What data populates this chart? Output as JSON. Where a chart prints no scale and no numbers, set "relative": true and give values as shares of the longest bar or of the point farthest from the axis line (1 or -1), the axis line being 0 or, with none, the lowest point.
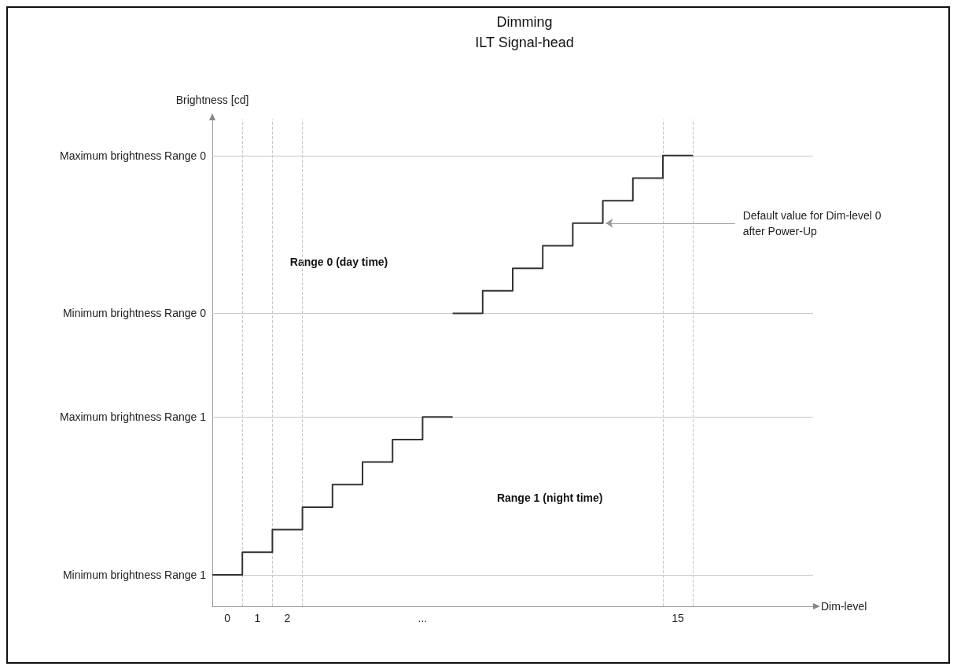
{
  "chart_data": {
    "type": "step",
    "title": "Dimming",
    "subtitle": "ILT Signal-head",
    "xlabel": "Dim-level",
    "ylabel": "Brightness [cd]",
    "relative": true,
    "xlim": [
      0,
      20
    ],
    "xticks": [
      {
        "value": 0.5,
        "label": "0"
      },
      {
        "value": 1.5,
        "label": "1"
      },
      {
        "value": 2.5,
        "label": "2"
      },
      {
        "value": 7,
        "label": "..."
      },
      {
        "value": 15.5,
        "label": "15"
      }
    ],
    "series": [
      {
        "color": "#333333",
        "x": [
          0,
          1,
          2,
          3,
          4,
          5,
          6,
          7,
          8
        ],
        "values": [
          0.07,
          0.12,
          0.17,
          0.22,
          0.27,
          0.32,
          0.37,
          0.42,
          0.42
        ]
      },
      {
        "color": "#333333",
        "x": [
          8,
          9,
          10,
          11,
          12,
          13,
          14,
          15,
          16
        ],
        "values": [
          0.65,
          0.7,
          0.75,
          0.8,
          0.85,
          0.9,
          0.95,
          1,
          1
        ]
      }
    ],
    "ref_lines": [
      {
        "axis": "y",
        "value": 0.07,
        "label": "Minimum brightness Range 1",
        "color": "#c8c8c8"
      },
      {
        "axis": "y",
        "value": 0.42,
        "label": "Maximum brightness Range 1",
        "color": "#c8c8c8"
      },
      {
        "axis": "y",
        "value": 0.65,
        "label": "Minimum brightness Range 0",
        "color": "#c8c8c8"
      },
      {
        "axis": "y",
        "value": 1,
        "label": "Maximum brightness Range 0",
        "color": "#c8c8c8"
      },
      {
        "axis": "x",
        "value": 1,
        "color": "#c8c8c8",
        "line_style": "dashed"
      },
      {
        "axis": "x",
        "value": 2,
        "color": "#c8c8c8",
        "line_style": "dashed"
      },
      {
        "axis": "x",
        "value": 3,
        "color": "#c8c8c8",
        "line_style": "dashed"
      },
      {
        "axis": "x",
        "value": 15,
        "color": "#c8c8c8",
        "line_style": "dashed"
      },
      {
        "axis": "x",
        "value": 16,
        "color": "#c8c8c8",
        "line_style": "dashed"
      }
    ],
    "annotations": [
      "Range 0 (day time)",
      "Range 1 (night time)",
      {
        "text": "Default value for Dim-level 0 after Power-Up",
        "x": 13,
        "y": 0.85
      }
    ],
    "grid": false,
    "marker": "none",
    "line_style": "solid"
  }
}
